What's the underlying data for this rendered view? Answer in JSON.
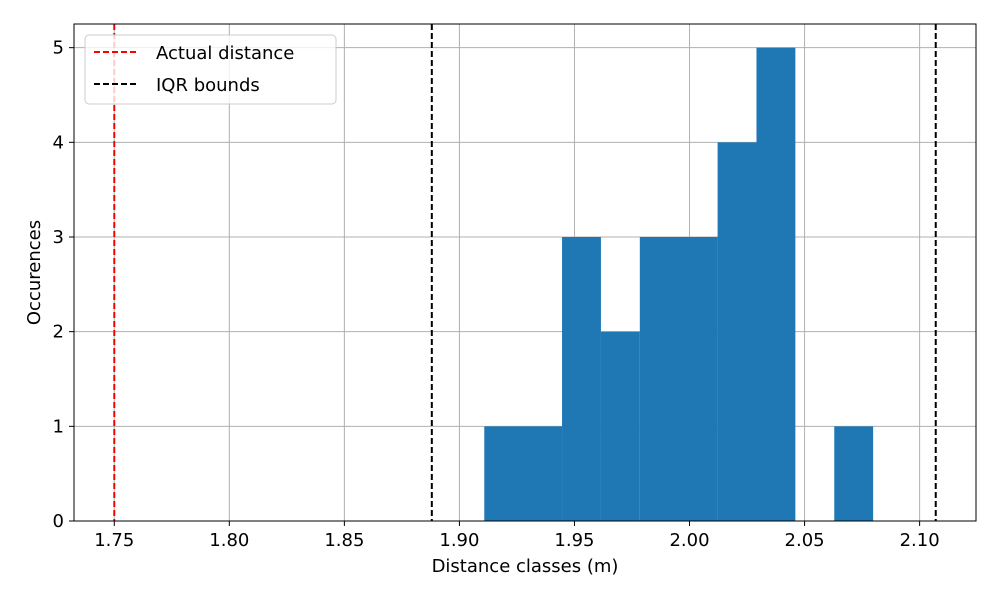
{
  "chart_data": {
    "type": "bar",
    "title": "",
    "xlabel": "Distance classes (m)",
    "ylabel": "Occurences",
    "xlim": [
      1.7325,
      2.1245
    ],
    "ylim": [
      0,
      5.25
    ],
    "grid": true,
    "legend_position": "top-left",
    "bar_color": "#1f77b4",
    "bins": [
      {
        "x0": 1.9108,
        "x1": 1.9446,
        "count": 1
      },
      {
        "x0": 1.9446,
        "x1": 1.9615,
        "count": 3
      },
      {
        "x0": 1.9615,
        "x1": 1.9784,
        "count": 2
      },
      {
        "x0": 1.9784,
        "x1": 2.0122,
        "count": 3
      },
      {
        "x0": 2.0122,
        "x1": 2.0291,
        "count": 4
      },
      {
        "x0": 2.0291,
        "x1": 2.046,
        "count": 5
      },
      {
        "x0": 2.0629,
        "x1": 2.0798,
        "count": 1
      }
    ],
    "x_ticks": [
      {
        "value": 1.75,
        "label": "1.75"
      },
      {
        "value": 1.8,
        "label": "1.80"
      },
      {
        "value": 1.85,
        "label": "1.85"
      },
      {
        "value": 1.9,
        "label": "1.90"
      },
      {
        "value": 1.95,
        "label": "1.95"
      },
      {
        "value": 2.0,
        "label": "2.00"
      },
      {
        "value": 2.05,
        "label": "2.05"
      },
      {
        "value": 2.1,
        "label": "2.10"
      }
    ],
    "y_ticks": [
      {
        "value": 0,
        "label": "0"
      },
      {
        "value": 1,
        "label": "1"
      },
      {
        "value": 2,
        "label": "2"
      },
      {
        "value": 3,
        "label": "3"
      },
      {
        "value": 4,
        "label": "4"
      },
      {
        "value": 5,
        "label": "5"
      }
    ],
    "reference_lines": [
      {
        "name": "Actual distance",
        "x": 1.75,
        "color": "#ff0000",
        "style": "dashed"
      },
      {
        "name": "IQR bounds",
        "x": 1.888,
        "color": "#000000",
        "style": "dashed"
      },
      {
        "name": "IQR bounds",
        "x": 2.107,
        "color": "#000000",
        "style": "dashed"
      }
    ],
    "legend": [
      {
        "label": "Actual distance",
        "color": "#ff0000"
      },
      {
        "label": "IQR bounds",
        "color": "#000000"
      }
    ]
  }
}
